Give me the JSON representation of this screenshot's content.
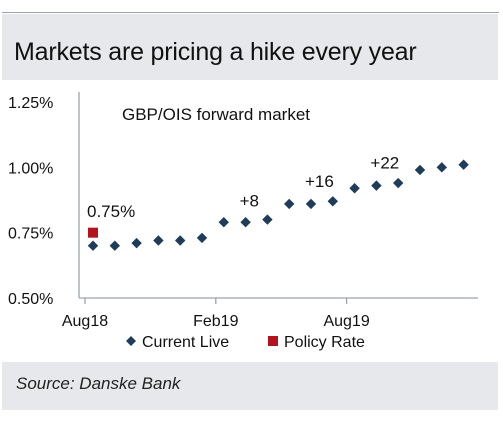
{
  "header": {
    "title": "Markets are pricing a hike every year"
  },
  "footer": {
    "source": "Source: Danske Bank"
  },
  "colors": {
    "current": "#1f3c5a",
    "policy": "#b3121f",
    "axis": "#9aa3ae"
  },
  "chart_data": {
    "type": "scatter",
    "title": "GBP/OIS forward market",
    "xlabel": "",
    "ylabel": "",
    "x_ticks": [
      "Aug18",
      "Feb19",
      "Aug19"
    ],
    "y_ticks": [
      "1.25%",
      "1.00%",
      "0.75%",
      "0.50%"
    ],
    "y_tick_values": [
      1.25,
      1.0,
      0.75,
      0.5
    ],
    "ylim": [
      0.5,
      1.25
    ],
    "legend_position": "bottom",
    "series": [
      {
        "name": "Current Live",
        "marker": "diamond",
        "x": [
          "Aug18",
          "Sep18",
          "Oct18",
          "Nov18",
          "Dec18",
          "Jan19",
          "Feb19",
          "Mar19",
          "Apr19",
          "May19",
          "Jun19",
          "Jul19",
          "Aug19",
          "Sep19",
          "Oct19",
          "Nov19",
          "Dec19",
          "Jan20"
        ],
        "values": [
          0.7,
          0.7,
          0.71,
          0.72,
          0.72,
          0.73,
          0.79,
          0.79,
          0.8,
          0.86,
          0.86,
          0.87,
          0.92,
          0.93,
          0.94,
          0.99,
          1.0,
          1.01
        ]
      },
      {
        "name": "Policy Rate",
        "marker": "square",
        "x": [
          "Aug18"
        ],
        "values": [
          0.75
        ]
      }
    ],
    "annotations": [
      {
        "text": "0.75%",
        "x": "Aug18",
        "y": 0.81
      },
      {
        "text": "+8",
        "x": "Mar19",
        "y": 0.85
      },
      {
        "text": "+16",
        "x": "Jun19",
        "y": 0.925
      },
      {
        "text": "+22",
        "x": "Sep19",
        "y": 0.995
      }
    ]
  }
}
